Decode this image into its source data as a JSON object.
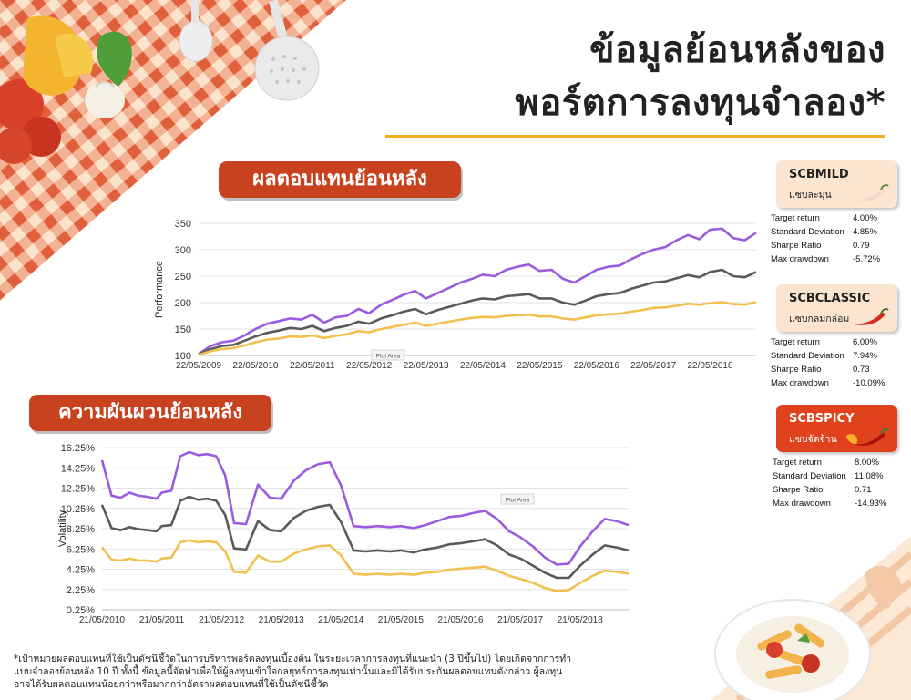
{
  "header": {
    "title_line1": "ข้อมูลย้อนหลังของ",
    "title_line2": "พอร์ตการลงทุนจำลอง*"
  },
  "sections": {
    "returns_banner": "ผลตอบแทนย้อนหลัง",
    "volatility_banner": "ความผันผวนย้อนหลัง"
  },
  "colors": {
    "purple": "#9b5be0",
    "gray": "#5a5a5a",
    "yellow": "#f2c04f",
    "banner": "#c9421f",
    "accent_rule": "#f0ad1e"
  },
  "portfolios": [
    {
      "name": "SCBMILD",
      "subtitle": "แซบละมุน",
      "chili_icon": "mild-chili-icon",
      "stats": [
        {
          "label": "Target return",
          "value": "4.00%"
        },
        {
          "label": "Standard Deviation",
          "value": "4.85%"
        },
        {
          "label": "Sharpe Ratio",
          "value": "0.79"
        },
        {
          "label": "Max drawdown",
          "value": "-5.72%"
        }
      ]
    },
    {
      "name": "SCBCLASSIC",
      "subtitle": "แซบกลมกล่อม",
      "chili_icon": "red-chili-icon",
      "stats": [
        {
          "label": "Target return",
          "value": "6.00%"
        },
        {
          "label": "Standard Deviation",
          "value": "7.94%"
        },
        {
          "label": "Sharpe Ratio",
          "value": "0.73"
        },
        {
          "label": "Max drawdown",
          "value": "-10.09%"
        }
      ]
    },
    {
      "name": "SCBSPICY",
      "subtitle": "แซบจัดจ้าน",
      "chili_icon": "fiery-chili-icon",
      "stats": [
        {
          "label": "Target return",
          "value": "8.00%"
        },
        {
          "label": "Standard Deviation",
          "value": "11.08%"
        },
        {
          "label": "Sharpe Ratio",
          "value": "0.71"
        },
        {
          "label": "Max drawdown",
          "value": "-14.93%"
        }
      ]
    }
  ],
  "chart_data": [
    {
      "type": "line",
      "ylabel": "Performance",
      "plot_area_label": "Plot Area",
      "ylim": [
        100,
        350
      ],
      "yticks": [
        100,
        150,
        200,
        250,
        300,
        350
      ],
      "xticks": [
        "22/05/2009",
        "22/05/2010",
        "22/05/2011",
        "22/05/2012",
        "22/05/2013",
        "22/05/2014",
        "22/05/2015",
        "22/05/2016",
        "22/05/2017",
        "22/05/2018"
      ],
      "x": [
        2009.39,
        2009.6,
        2009.8,
        2010.0,
        2010.2,
        2010.39,
        2010.6,
        2010.8,
        2011.0,
        2011.2,
        2011.39,
        2011.6,
        2011.8,
        2012.0,
        2012.2,
        2012.39,
        2012.6,
        2012.8,
        2013.0,
        2013.2,
        2013.39,
        2013.6,
        2013.8,
        2014.0,
        2014.2,
        2014.39,
        2014.6,
        2014.8,
        2015.0,
        2015.2,
        2015.39,
        2015.6,
        2015.8,
        2016.0,
        2016.2,
        2016.39,
        2016.6,
        2016.8,
        2017.0,
        2017.2,
        2017.39,
        2017.6,
        2017.8,
        2018.0,
        2018.2,
        2018.39,
        2018.6,
        2018.8,
        2019.0,
        2019.2
      ],
      "series": [
        {
          "color": "#9b5be0",
          "values": [
            103,
            118,
            125,
            128,
            138,
            150,
            160,
            165,
            170,
            168,
            177,
            162,
            172,
            175,
            188,
            180,
            196,
            205,
            215,
            222,
            208,
            218,
            228,
            238,
            245,
            253,
            250,
            262,
            268,
            272,
            260,
            262,
            245,
            238,
            250,
            262,
            268,
            270,
            282,
            292,
            300,
            305,
            318,
            328,
            320,
            338,
            340,
            322,
            318,
            332
          ]
        },
        {
          "color": "#5a5a5a",
          "values": [
            102,
            112,
            118,
            120,
            128,
            136,
            143,
            147,
            152,
            150,
            156,
            146,
            152,
            156,
            164,
            160,
            170,
            176,
            183,
            188,
            178,
            186,
            192,
            198,
            204,
            208,
            206,
            212,
            214,
            216,
            208,
            208,
            200,
            196,
            204,
            212,
            216,
            218,
            226,
            232,
            238,
            240,
            246,
            252,
            248,
            258,
            262,
            250,
            248,
            258
          ]
        },
        {
          "color": "#f2c04f",
          "values": [
            101,
            108,
            112,
            114,
            119,
            125,
            130,
            132,
            136,
            135,
            138,
            133,
            137,
            140,
            146,
            144,
            150,
            154,
            158,
            162,
            156,
            160,
            164,
            168,
            171,
            173,
            172,
            175,
            176,
            177,
            174,
            174,
            170,
            168,
            172,
            176,
            178,
            179,
            183,
            186,
            190,
            191,
            194,
            198,
            196,
            199,
            201,
            197,
            196,
            201
          ]
        }
      ]
    },
    {
      "type": "line",
      "ylabel": "Volatility",
      "plot_area_label": "Plot Area",
      "ylim": [
        0.25,
        16.25
      ],
      "yticks": [
        "0.25%",
        "2.25%",
        "4.25%",
        "6.25%",
        "8.25%",
        "10.25%",
        "12.25%",
        "14.25%",
        "16.25%"
      ],
      "xticks": [
        "21/05/2010",
        "21/05/2011",
        "21/05/2012",
        "21/05/2013",
        "21/05/2014",
        "21/05/2015",
        "21/05/2016",
        "21/05/2017",
        "21/05/2018"
      ],
      "x": [
        2010.39,
        2010.55,
        2010.7,
        2010.85,
        2011.0,
        2011.15,
        2011.3,
        2011.39,
        2011.55,
        2011.7,
        2011.85,
        2012.0,
        2012.15,
        2012.3,
        2012.45,
        2012.6,
        2012.8,
        2013.0,
        2013.2,
        2013.39,
        2013.6,
        2013.8,
        2014.0,
        2014.2,
        2014.39,
        2014.6,
        2014.8,
        2015.0,
        2015.2,
        2015.39,
        2015.6,
        2015.8,
        2016.0,
        2016.2,
        2016.39,
        2016.6,
        2016.8,
        2017.0,
        2017.2,
        2017.39,
        2017.6,
        2017.8,
        2018.0,
        2018.2,
        2018.39,
        2018.6,
        2018.8,
        2019.0,
        2019.2
      ],
      "series": [
        {
          "color": "#9b5be0",
          "values": [
            15.0,
            11.5,
            11.3,
            11.8,
            11.5,
            11.4,
            11.2,
            11.8,
            12.0,
            15.4,
            15.8,
            15.5,
            15.6,
            15.4,
            13.5,
            8.8,
            8.7,
            12.6,
            11.3,
            11.2,
            13.0,
            14.0,
            14.6,
            14.8,
            12.5,
            8.5,
            8.4,
            8.5,
            8.4,
            8.5,
            8.3,
            8.6,
            9.0,
            9.4,
            9.5,
            9.8,
            10.0,
            9.2,
            8.0,
            7.4,
            6.5,
            5.4,
            4.7,
            4.8,
            6.5,
            8.0,
            9.2,
            9.0,
            8.6
          ]
        },
        {
          "color": "#5a5a5a",
          "values": [
            10.6,
            8.3,
            8.1,
            8.4,
            8.2,
            8.1,
            8.0,
            8.5,
            8.6,
            11.0,
            11.4,
            11.1,
            11.2,
            11.0,
            9.6,
            6.3,
            6.2,
            9.0,
            8.1,
            8.0,
            9.3,
            10.0,
            10.4,
            10.6,
            8.9,
            6.1,
            6.0,
            6.1,
            6.0,
            6.1,
            5.9,
            6.2,
            6.4,
            6.7,
            6.8,
            7.0,
            7.2,
            6.6,
            5.7,
            5.3,
            4.6,
            3.9,
            3.4,
            3.4,
            4.6,
            5.7,
            6.6,
            6.4,
            6.1
          ]
        },
        {
          "color": "#f2c04f",
          "values": [
            6.4,
            5.2,
            5.1,
            5.3,
            5.1,
            5.1,
            5.0,
            5.3,
            5.4,
            6.9,
            7.1,
            6.9,
            7.0,
            6.9,
            6.0,
            4.0,
            3.9,
            5.6,
            5.0,
            5.0,
            5.8,
            6.2,
            6.5,
            6.6,
            5.6,
            3.8,
            3.7,
            3.8,
            3.7,
            3.8,
            3.7,
            3.9,
            4.0,
            4.2,
            4.3,
            4.4,
            4.5,
            4.1,
            3.6,
            3.3,
            2.9,
            2.4,
            2.1,
            2.2,
            2.9,
            3.6,
            4.1,
            4.0,
            3.8
          ]
        }
      ]
    }
  ],
  "footnote": [
    "*เป้าหมายผลตอบแทนที่ใช้เป็นดัชนีชี้วัดในการบริหารพอร์ตลงทุนเบื้องต้น ในระยะเวลาการลงทุนที่แนะนำ (3 ปีขึ้นไป) โดยเกิดจากการทำ",
    "แบบจำลองย้อนหลัง 10 ปี  ทั้งนี้ ข้อมูลนี้จัดทำเพื่อให้ผู้ลงทุนเข้าใจกลยุทธ์การลงทุนเท่านั้นและมิได้รับประกันผลตอบแทนดังกล่าว ผู้ลงทุน",
    "อาจได้รับผลตอบแทนน้อยกว่าหรือมากกว่าอัตราผลตอบแทนที่ใช้เป็นดัชนีชี้วัด"
  ]
}
